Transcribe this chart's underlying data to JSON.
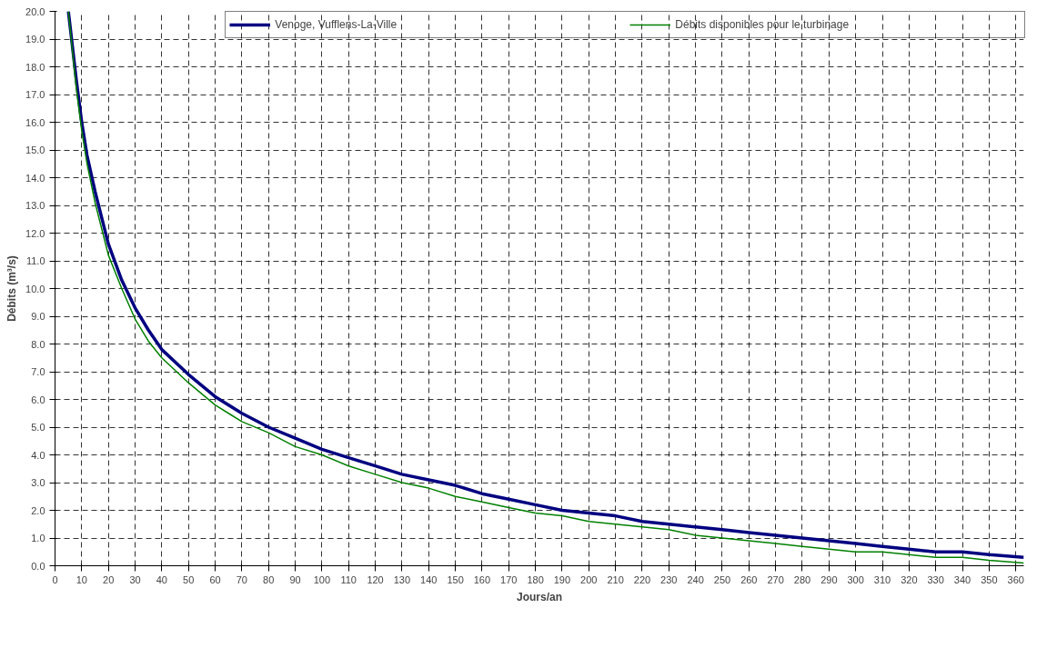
{
  "chart_data": {
    "type": "line",
    "xlabel": "Jours/an",
    "ylabel": "Débits (m³/s)",
    "xlim": [
      0,
      363
    ],
    "xticks": [
      0,
      10,
      20,
      30,
      40,
      50,
      60,
      70,
      80,
      90,
      100,
      110,
      120,
      130,
      140,
      150,
      160,
      170,
      180,
      190,
      200,
      210,
      220,
      230,
      240,
      250,
      260,
      270,
      280,
      290,
      300,
      310,
      320,
      330,
      340,
      350,
      360
    ],
    "ylim": [
      0,
      20
    ],
    "yticks": [
      {
        "value": 0,
        "label": "0.0"
      },
      {
        "value": 1,
        "label": "1.0"
      },
      {
        "value": 2,
        "label": "2.0"
      },
      {
        "value": 3,
        "label": "3.0"
      },
      {
        "value": 4,
        "label": "4.0"
      },
      {
        "value": 5,
        "label": "5.0"
      },
      {
        "value": 6,
        "label": "6.0"
      },
      {
        "value": 7,
        "label": "7.0"
      },
      {
        "value": 8,
        "label": "8.0"
      },
      {
        "value": 9,
        "label": "9.0"
      },
      {
        "value": 10,
        "label": "10.0"
      },
      {
        "value": 11,
        "label": "11.0"
      },
      {
        "value": 12,
        "label": "12.0"
      },
      {
        "value": 13,
        "label": "13.0"
      },
      {
        "value": 14,
        "label": "14.0"
      },
      {
        "value": 15,
        "label": "15.0"
      },
      {
        "value": 16,
        "label": "16.0"
      },
      {
        "value": 17,
        "label": "17.0"
      },
      {
        "value": 18,
        "label": "18.0"
      },
      {
        "value": 19,
        "label": "19.0"
      },
      {
        "value": 20,
        "label": "20.0"
      }
    ],
    "grid": true,
    "legend": "top",
    "marker": "none",
    "line_style": "solid",
    "x": [
      5,
      8,
      10,
      12,
      15,
      20,
      25,
      30,
      35,
      40,
      50,
      60,
      70,
      80,
      90,
      100,
      110,
      120,
      130,
      140,
      150,
      160,
      170,
      180,
      190,
      200,
      210,
      220,
      230,
      240,
      250,
      260,
      270,
      280,
      290,
      300,
      310,
      320,
      330,
      340,
      350,
      363
    ],
    "series": [
      {
        "name": "Venoge, Vufflens-La-Ville",
        "color": "#000080",
        "values": [
          20,
          17.5,
          16,
          14.8,
          13.5,
          11.6,
          10.3,
          9.3,
          8.5,
          7.8,
          6.9,
          6.1,
          5.5,
          5.0,
          4.6,
          4.2,
          3.9,
          3.6,
          3.3,
          3.1,
          2.9,
          2.6,
          2.4,
          2.2,
          2.0,
          1.9,
          1.8,
          1.6,
          1.5,
          1.4,
          1.3,
          1.2,
          1.1,
          1.0,
          0.9,
          0.8,
          0.7,
          0.6,
          0.5,
          0.5,
          0.4,
          0.3
        ]
      },
      {
        "name": "Débits disponibles pour le turbinage",
        "color": "#008000",
        "values": [
          20,
          17.2,
          15.7,
          14.5,
          13.1,
          11.2,
          10.0,
          8.9,
          8.1,
          7.5,
          6.6,
          5.8,
          5.2,
          4.8,
          4.3,
          4.0,
          3.6,
          3.3,
          3.0,
          2.8,
          2.5,
          2.3,
          2.1,
          1.9,
          1.8,
          1.6,
          1.5,
          1.4,
          1.3,
          1.1,
          1.0,
          0.9,
          0.8,
          0.7,
          0.6,
          0.5,
          0.5,
          0.4,
          0.3,
          0.3,
          0.2,
          0.1
        ]
      }
    ]
  }
}
